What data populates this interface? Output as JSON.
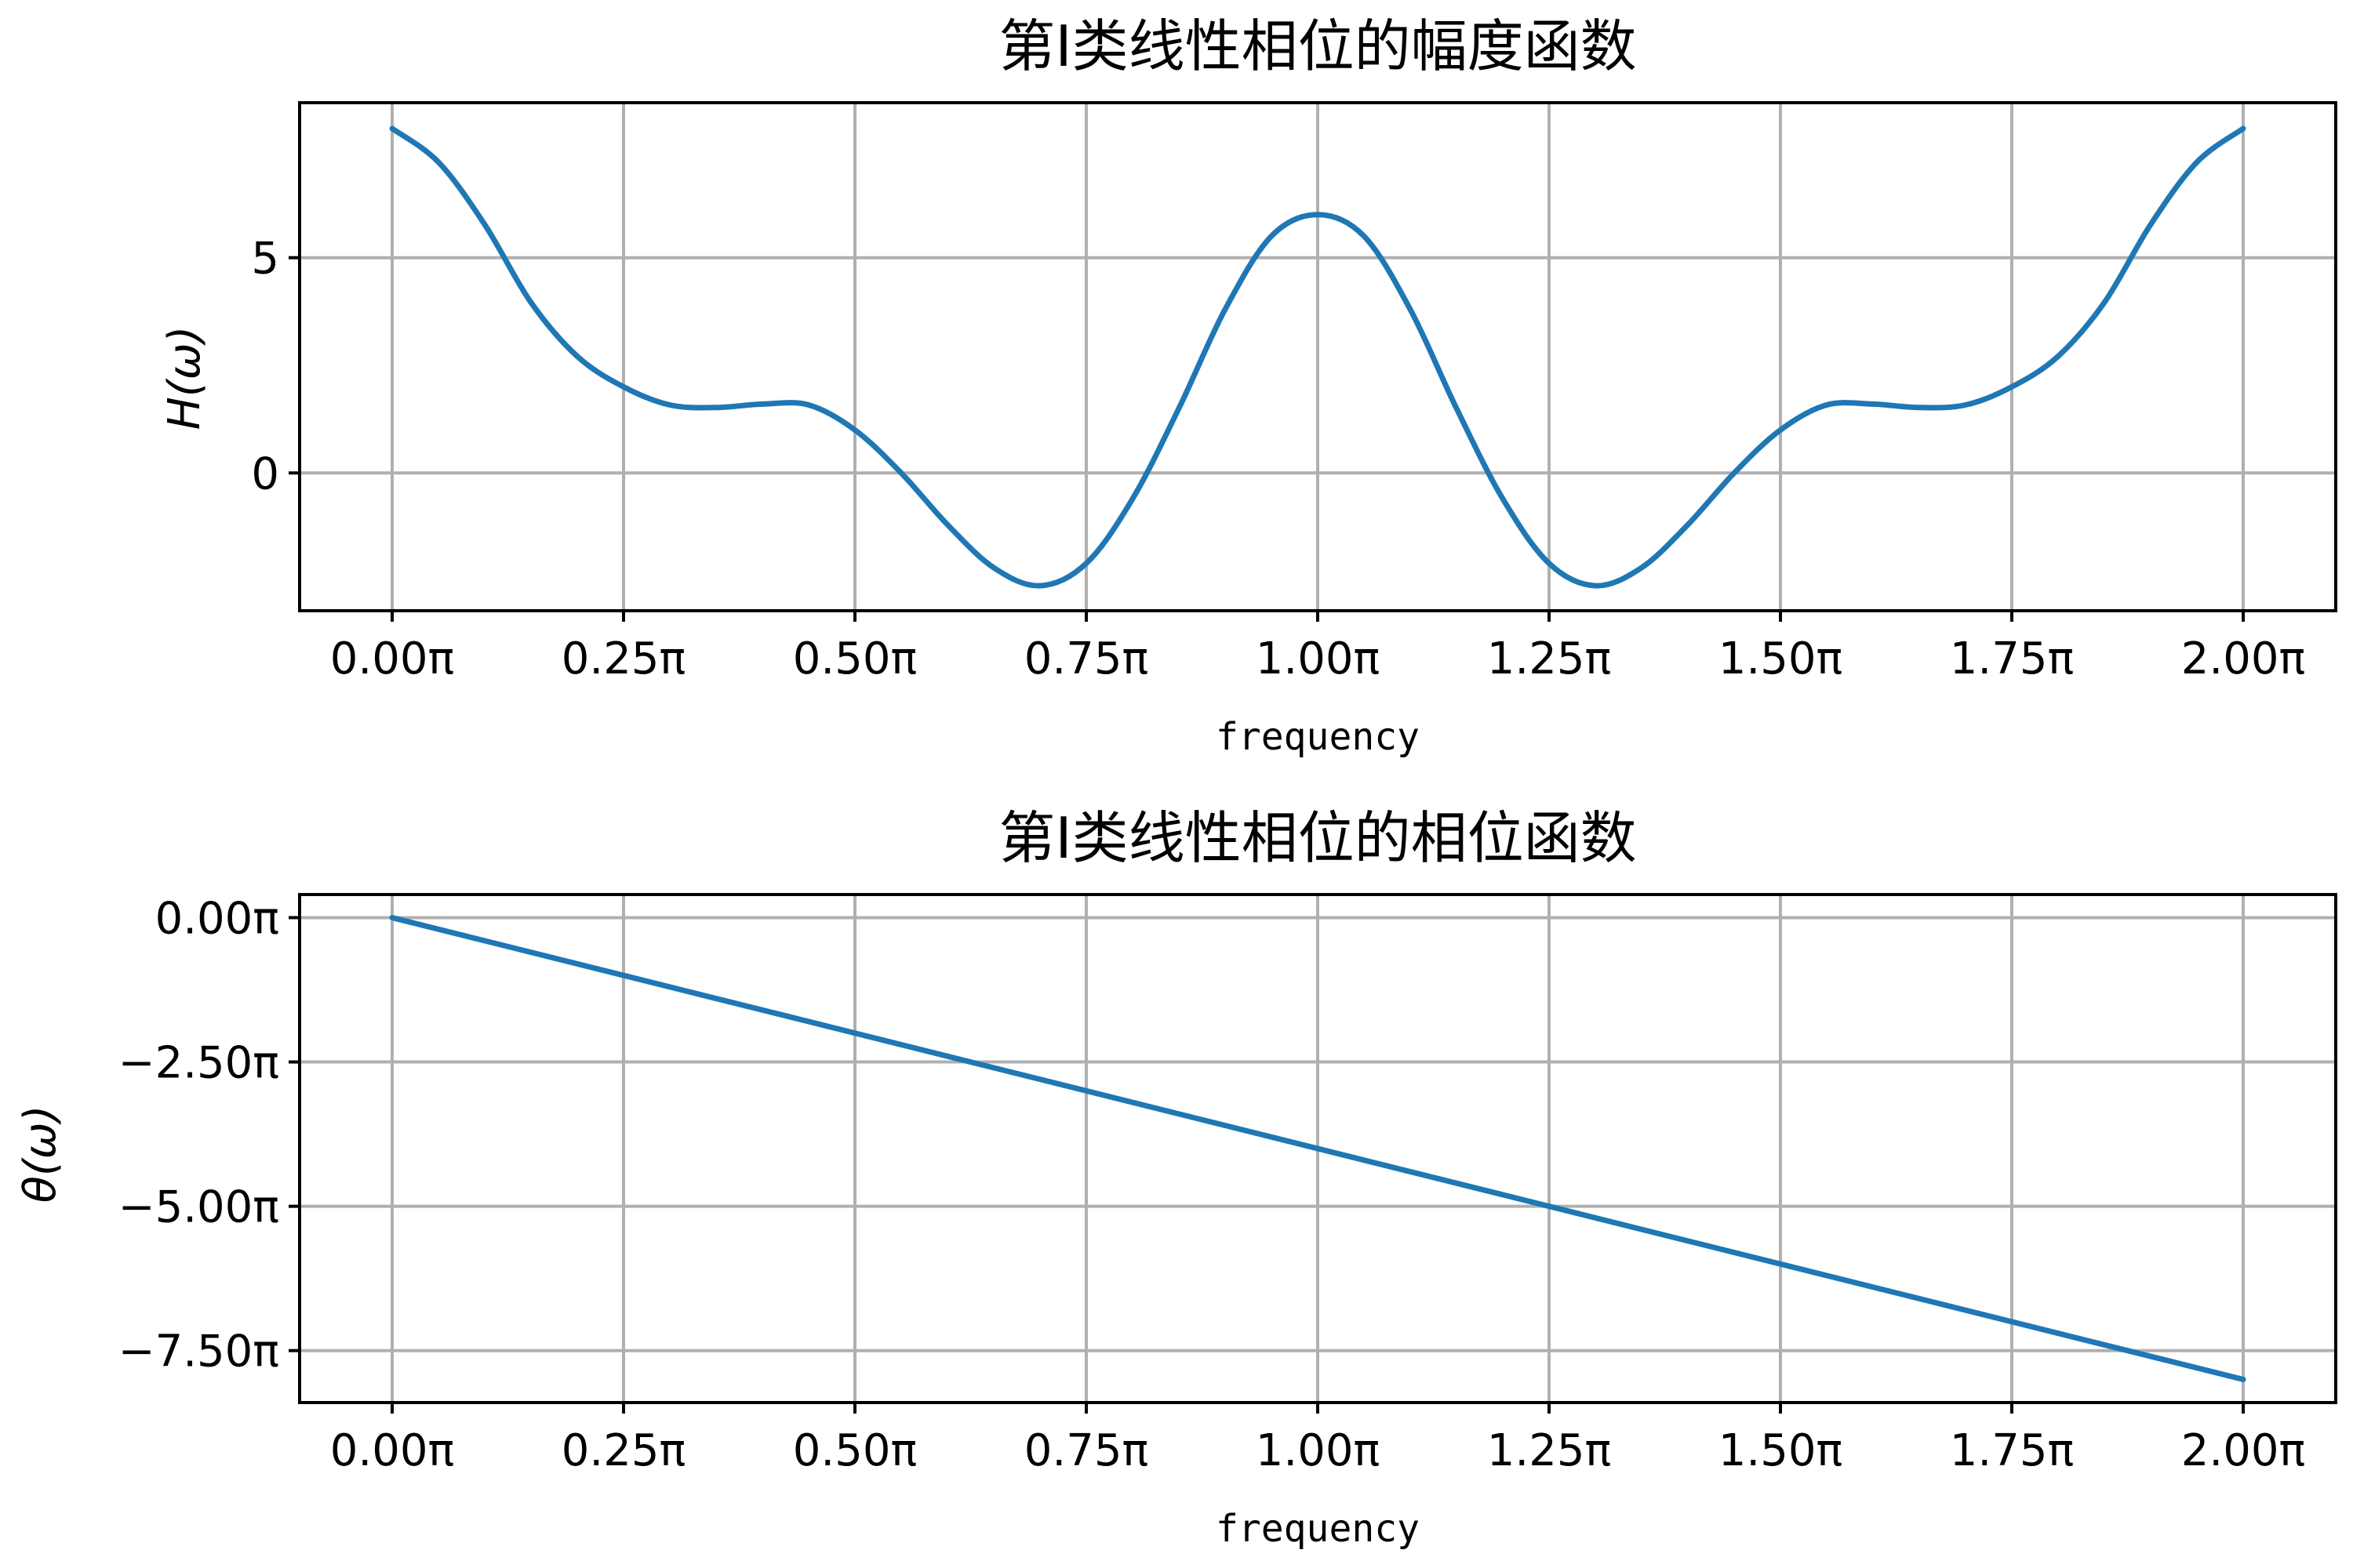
{
  "chart_data": [
    {
      "type": "line",
      "title": "第I类线性相位的幅度函数",
      "xlabel": "frequency",
      "ylabel": "H(ω)",
      "xlim": [
        -0.1,
        2.1
      ],
      "ylim": [
        -3.2,
        8.6
      ],
      "x_unit": "π",
      "xticks": [
        0,
        0.25,
        0.5,
        0.75,
        1.0,
        1.25,
        1.5,
        1.75,
        2.0
      ],
      "xtick_labels": [
        "0.00π",
        "0.25π",
        "0.50π",
        "0.75π",
        "1.00π",
        "1.25π",
        "1.50π",
        "1.75π",
        "2.00π"
      ],
      "yticks": [
        0,
        5
      ],
      "ytick_labels": [
        "0",
        "5"
      ],
      "grid": true,
      "series": [
        {
          "color": "#1f77b4",
          "x": [
            0,
            0.05,
            0.1,
            0.15,
            0.2,
            0.25,
            0.3,
            0.35,
            0.4,
            0.45,
            0.5,
            0.55,
            0.6,
            0.65,
            0.7,
            0.75,
            0.8,
            0.85,
            0.9,
            0.95,
            1.0,
            1.05,
            1.1,
            1.15,
            1.2,
            1.25,
            1.3,
            1.35,
            1.4,
            1.45,
            1.5,
            1.55,
            1.6,
            1.65,
            1.7,
            1.75,
            1.8,
            1.85,
            1.9,
            1.95,
            2.0
          ],
          "y": [
            8.0,
            7.22,
            5.77,
            3.96,
            2.71,
            2.0,
            1.58,
            1.52,
            1.6,
            1.58,
            1.0,
            0.0,
            -1.2,
            -2.2,
            -2.62,
            -2.1,
            -0.6,
            1.5,
            3.8,
            5.5,
            6.0,
            5.5,
            3.8,
            1.5,
            -0.6,
            -2.1,
            -2.62,
            -2.2,
            -1.2,
            0.0,
            1.0,
            1.58,
            1.6,
            1.52,
            1.58,
            2.0,
            2.71,
            3.96,
            5.77,
            7.22,
            8.0
          ]
        }
      ]
    },
    {
      "type": "line",
      "title": "第I类线性相位的相位函数",
      "xlabel": "frequency",
      "ylabel": "θ(ω)",
      "xlim": [
        -0.1,
        2.1
      ],
      "ylim": [
        -8.4,
        0.4
      ],
      "x_unit": "π",
      "y_unit": "π",
      "xticks": [
        0,
        0.25,
        0.5,
        0.75,
        1.0,
        1.25,
        1.5,
        1.75,
        2.0
      ],
      "xtick_labels": [
        "0.00π",
        "0.25π",
        "0.50π",
        "0.75π",
        "1.00π",
        "1.25π",
        "1.50π",
        "1.75π",
        "2.00π"
      ],
      "yticks": [
        0,
        -2.5,
        -5.0,
        -7.5
      ],
      "ytick_labels": [
        "0.00π",
        "−2.50π",
        "−5.00π",
        "−7.50π"
      ],
      "grid": true,
      "series": [
        {
          "color": "#1f77b4",
          "x": [
            0,
            2.0
          ],
          "y": [
            0,
            -8.0
          ]
        }
      ]
    }
  ]
}
